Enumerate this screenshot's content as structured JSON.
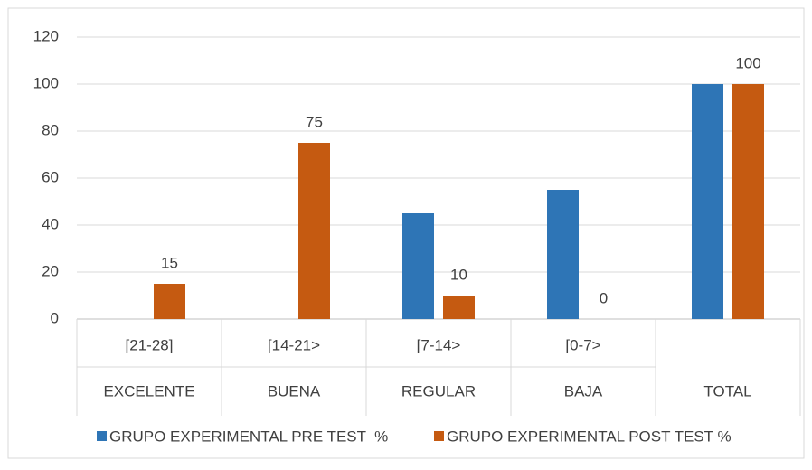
{
  "chart_data": {
    "type": "bar",
    "categories": [
      "[21-28]",
      "[14-21>",
      "[7-14>",
      "[0-7>",
      null
    ],
    "groups": [
      "EXCELENTE",
      "BUENA",
      "REGULAR",
      "BAJA",
      "TOTAL"
    ],
    "series": [
      {
        "name": "GRUPO EXPERIMENTAL PRE TEST  %",
        "color": "#2e75b6",
        "values": [
          0,
          0,
          45,
          55,
          100
        ]
      },
      {
        "name": "GRUPO EXPERIMENTAL POST TEST %",
        "color": "#c55a11",
        "values": [
          15,
          75,
          10,
          0,
          100
        ],
        "show_labels": true
      }
    ],
    "ylim": [
      0,
      120
    ],
    "yticks": [
      0,
      20,
      40,
      60,
      80,
      100,
      120
    ],
    "grid": true,
    "legend": "bottom"
  }
}
